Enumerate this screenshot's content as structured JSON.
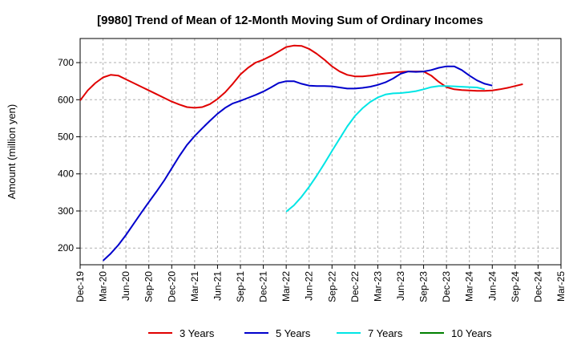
{
  "chart_data": {
    "type": "line",
    "title": "[9980]  Trend of Mean of 12-Month Moving Sum of Ordinary Incomes",
    "xlabel": "",
    "ylabel": "Amount (million yen)",
    "x_tick_labels": [
      "Dec-19",
      "Mar-20",
      "Jun-20",
      "Sep-20",
      "Dec-20",
      "Mar-21",
      "Jun-21",
      "Sep-21",
      "Dec-21",
      "Mar-22",
      "Jun-22",
      "Sep-22",
      "Dec-22",
      "Mar-23",
      "Jun-23",
      "Sep-23",
      "Dec-23",
      "Mar-24",
      "Jun-24",
      "Sep-24",
      "Dec-24",
      "Mar-25"
    ],
    "y_ticks": [
      200,
      300,
      400,
      500,
      600,
      700
    ],
    "ylim": [
      155,
      765
    ],
    "grid": true,
    "legend_position": "bottom",
    "series": [
      {
        "name": "3 Years",
        "color": "#e00000",
        "start_month_index": 0,
        "values": [
          598,
          625,
          645,
          660,
          667,
          665,
          655,
          645,
          635,
          625,
          615,
          605,
          595,
          587,
          580,
          578,
          580,
          588,
          602,
          620,
          643,
          668,
          686,
          700,
          708,
          718,
          730,
          742,
          746,
          745,
          737,
          724,
          708,
          690,
          676,
          667,
          663,
          663,
          665,
          668,
          671,
          673,
          675,
          676,
          676,
          676,
          665,
          648,
          634,
          628,
          626,
          625,
          624,
          624,
          625,
          628,
          632,
          637,
          642
        ]
      },
      {
        "name": "5 Years",
        "color": "#0000cc",
        "start_month_index": 3,
        "values": [
          166,
          185,
          208,
          235,
          265,
          295,
          324,
          352,
          382,
          415,
          448,
          478,
          502,
          523,
          543,
          562,
          578,
          590,
          597,
          605,
          613,
          622,
          633,
          645,
          650,
          650,
          643,
          638,
          637,
          637,
          636,
          633,
          630,
          630,
          632,
          635,
          640,
          647,
          657,
          670,
          676,
          675,
          676,
          680,
          686,
          690,
          690,
          680,
          665,
          652,
          643,
          638
        ]
      },
      {
        "name": "7 Years",
        "color": "#00e5e5",
        "start_month_index": 27,
        "values": [
          298,
          315,
          338,
          365,
          395,
          428,
          462,
          495,
          528,
          556,
          577,
          594,
          606,
          614,
          617,
          618,
          620,
          623,
          628,
          634,
          637,
          637,
          636,
          635,
          634,
          633,
          628
        ]
      },
      {
        "name": "10 Years",
        "color": "#008000",
        "start_month_index": 0,
        "values": []
      }
    ]
  }
}
